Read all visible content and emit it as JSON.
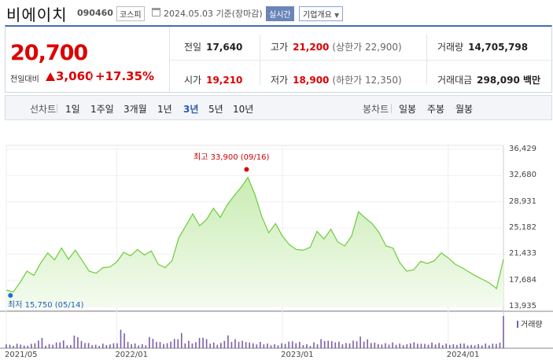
{
  "header": {
    "name": "비에이치",
    "code": "090460",
    "market": "코스피",
    "date": "2024.05.03 기준(장마감)",
    "realtime": "실시간",
    "overview": "기업개요"
  },
  "price": {
    "current": "20,700",
    "change_label": "전일대비",
    "change": "3,060",
    "change_pct": "+17.35%"
  },
  "stats": {
    "prev_label": "전일",
    "prev": "17,640",
    "high_label": "고가",
    "high": "21,200",
    "upper_limit": "(상한가 22,900)",
    "volume_label": "거래량",
    "volume": "14,705,798",
    "open_label": "시가",
    "open": "19,210",
    "low_label": "저가",
    "low": "18,900",
    "lower_limit": "(하한가 12,350)",
    "amount_label": "거래대금",
    "amount": "298,090 백만"
  },
  "tabs": {
    "line_chart": "선차트",
    "periods": [
      "1일",
      "1주일",
      "3개월",
      "1년",
      "3년",
      "5년",
      "10년"
    ],
    "active_period": "3년",
    "candle_chart": "봉차트",
    "candle_periods": [
      "일봉",
      "주봉",
      "월봉"
    ]
  },
  "chart_data": {
    "type": "area",
    "y_ticks": [
      "36,429",
      "32,680",
      "28,931",
      "25,182",
      "21,433",
      "17,684",
      "13,935"
    ],
    "ylim": [
      13935,
      36429
    ],
    "x_ticks": [
      "2021/05",
      "2022/01",
      "2023/01",
      "2024/01"
    ],
    "max_label": "최고 33,900 (09/16)",
    "min_label": "최저 15,750 (05/14)",
    "volume_label": "거래량",
    "colors": {
      "line": "#6ccc3c",
      "fill": "#d9f2c7",
      "volume": "#7b5ea7",
      "marker": "#d00",
      "min_marker": "#1f6fd0"
    },
    "x_months": [
      0,
      0.5,
      1,
      1.5,
      2,
      2.5,
      3,
      3.5,
      4,
      4.5,
      5,
      5.5,
      6,
      6.5,
      7,
      7.5,
      8,
      8.5,
      9,
      9.5,
      10,
      10.5,
      11,
      11.5,
      12,
      12.5,
      13,
      13.5,
      14,
      14.5,
      15,
      15.5,
      16,
      16.5,
      17,
      17.5,
      18,
      18.5,
      19,
      19.5,
      20,
      20.5,
      21,
      21.5,
      22,
      22.5,
      23,
      23.5,
      24,
      24.5,
      25,
      25.5,
      26,
      26.5,
      27,
      27.5,
      28,
      28.5,
      29,
      29.5,
      30,
      30.5,
      31,
      31.5,
      32,
      32.5,
      33,
      33.5,
      34,
      34.5,
      35,
      35.5,
      36
    ],
    "values": [
      16300,
      16000,
      17400,
      19000,
      18400,
      20200,
      21600,
      20600,
      22300,
      20700,
      22000,
      20500,
      19000,
      18700,
      19500,
      19600,
      20300,
      21700,
      21200,
      22100,
      21300,
      21900,
      20000,
      19500,
      20500,
      23800,
      25500,
      27200,
      25500,
      26400,
      28000,
      26700,
      28500,
      29800,
      31000,
      32400,
      30000,
      26800,
      24500,
      25800,
      24000,
      22800,
      22100,
      22000,
      22400,
      24700,
      23600,
      25000,
      23200,
      22600,
      24000,
      27500,
      26600,
      25800,
      24500,
      22600,
      22300,
      20200,
      19000,
      19200,
      20400,
      20100,
      20500,
      21600,
      20900,
      20000,
      19500,
      18900,
      18300,
      17800,
      17300,
      16500,
      20700
    ],
    "volume": [
      1.2,
      0.6,
      0.8,
      0.5,
      0.9,
      1.8,
      0.7,
      1.0,
      1.4,
      0.6,
      2.4,
      1.3,
      0.9,
      0.6,
      0.8,
      0.7,
      1.0,
      3.4,
      1.1,
      0.8,
      0.7,
      2.0,
      1.2,
      0.9,
      1.6,
      2.6,
      1.3,
      1.1,
      2.1,
      1.7,
      1.0,
      0.9,
      2.2,
      1.6,
      1.4,
      1.2,
      0.9,
      1.1,
      0.8,
      0.7,
      0.9,
      1.3,
      1.1,
      0.8,
      0.7,
      1.0,
      1.6,
      1.4,
      1.2,
      0.9,
      1.3,
      2.0,
      1.6,
      1.1,
      0.8,
      0.9,
      1.0,
      0.8,
      0.7,
      1.1,
      0.9,
      0.8,
      1.0,
      0.9,
      0.8,
      0.7,
      0.9,
      0.6,
      0.7,
      0.8,
      0.8,
      1.0,
      5.5
    ]
  }
}
